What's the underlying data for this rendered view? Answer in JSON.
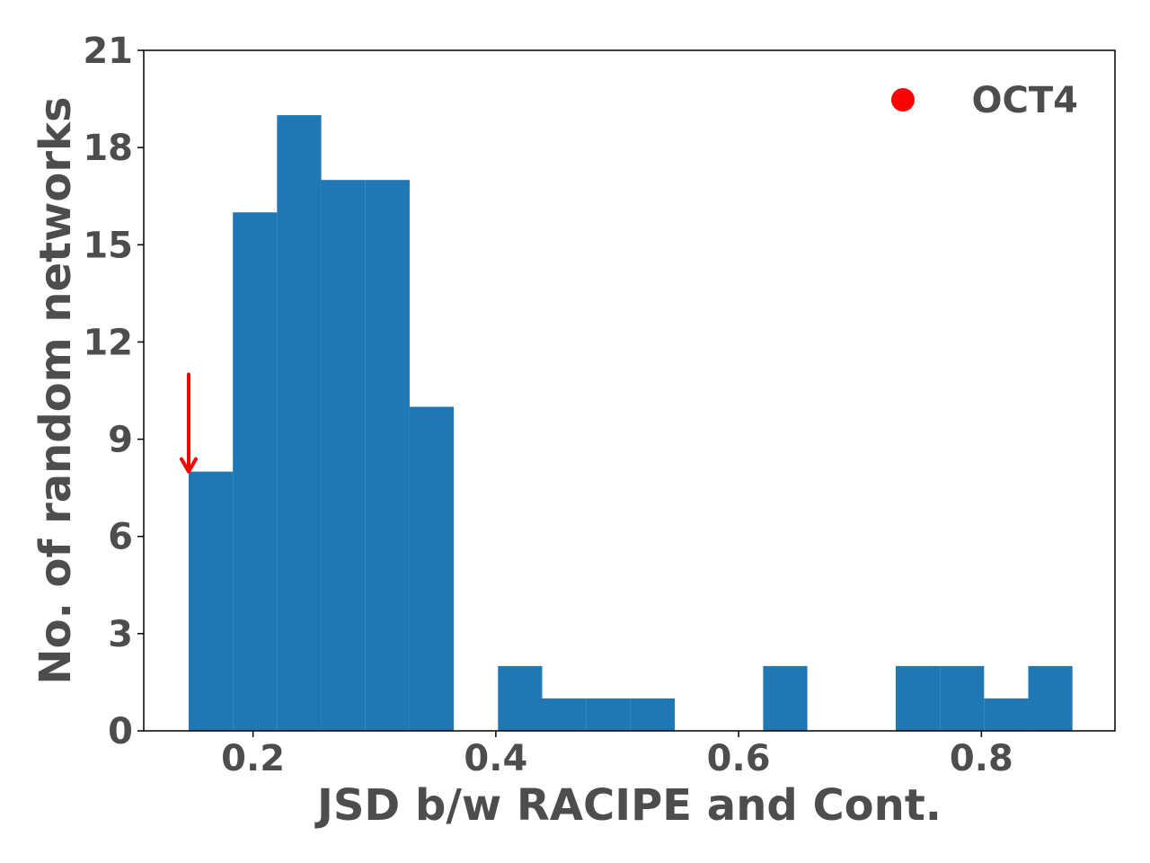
{
  "chart_data": {
    "type": "bar",
    "subtype": "histogram",
    "xlabel": "JSD b/w RACIPE and Cont.",
    "ylabel": "No. of random networks",
    "xlim": [
      0.11,
      0.91
    ],
    "ylim": [
      0,
      21
    ],
    "x_ticks": [
      0.2,
      0.4,
      0.6,
      0.8
    ],
    "x_tick_labels": [
      "0.2",
      "0.4",
      "0.6",
      "0.8"
    ],
    "y_ticks": [
      0,
      3,
      6,
      9,
      12,
      15,
      18,
      21
    ],
    "y_tick_labels": [
      "0",
      "3",
      "6",
      "9",
      "12",
      "15",
      "18",
      "21"
    ],
    "bin_edges": [
      0.147,
      0.1834,
      0.2198,
      0.2562,
      0.2926,
      0.329,
      0.3654,
      0.4018,
      0.4382,
      0.4746,
      0.511,
      0.5474,
      0.5838,
      0.6202,
      0.6566,
      0.693,
      0.7294,
      0.7658,
      0.8022,
      0.8386,
      0.875
    ],
    "counts": [
      8,
      16,
      19,
      17,
      17,
      10,
      0,
      2,
      1,
      1,
      1,
      0,
      0,
      2,
      0,
      0,
      2,
      2,
      1,
      2
    ],
    "bar_color": "#1f77b4",
    "grid": false,
    "legend": {
      "placement": "top-right",
      "entries": [
        {
          "label": "OCT4",
          "marker": "circle",
          "color": "#ff0000"
        }
      ]
    },
    "annotation": {
      "type": "arrow",
      "color": "#ff0000",
      "x": 0.147,
      "y_start": 11,
      "y_end": 8
    }
  }
}
